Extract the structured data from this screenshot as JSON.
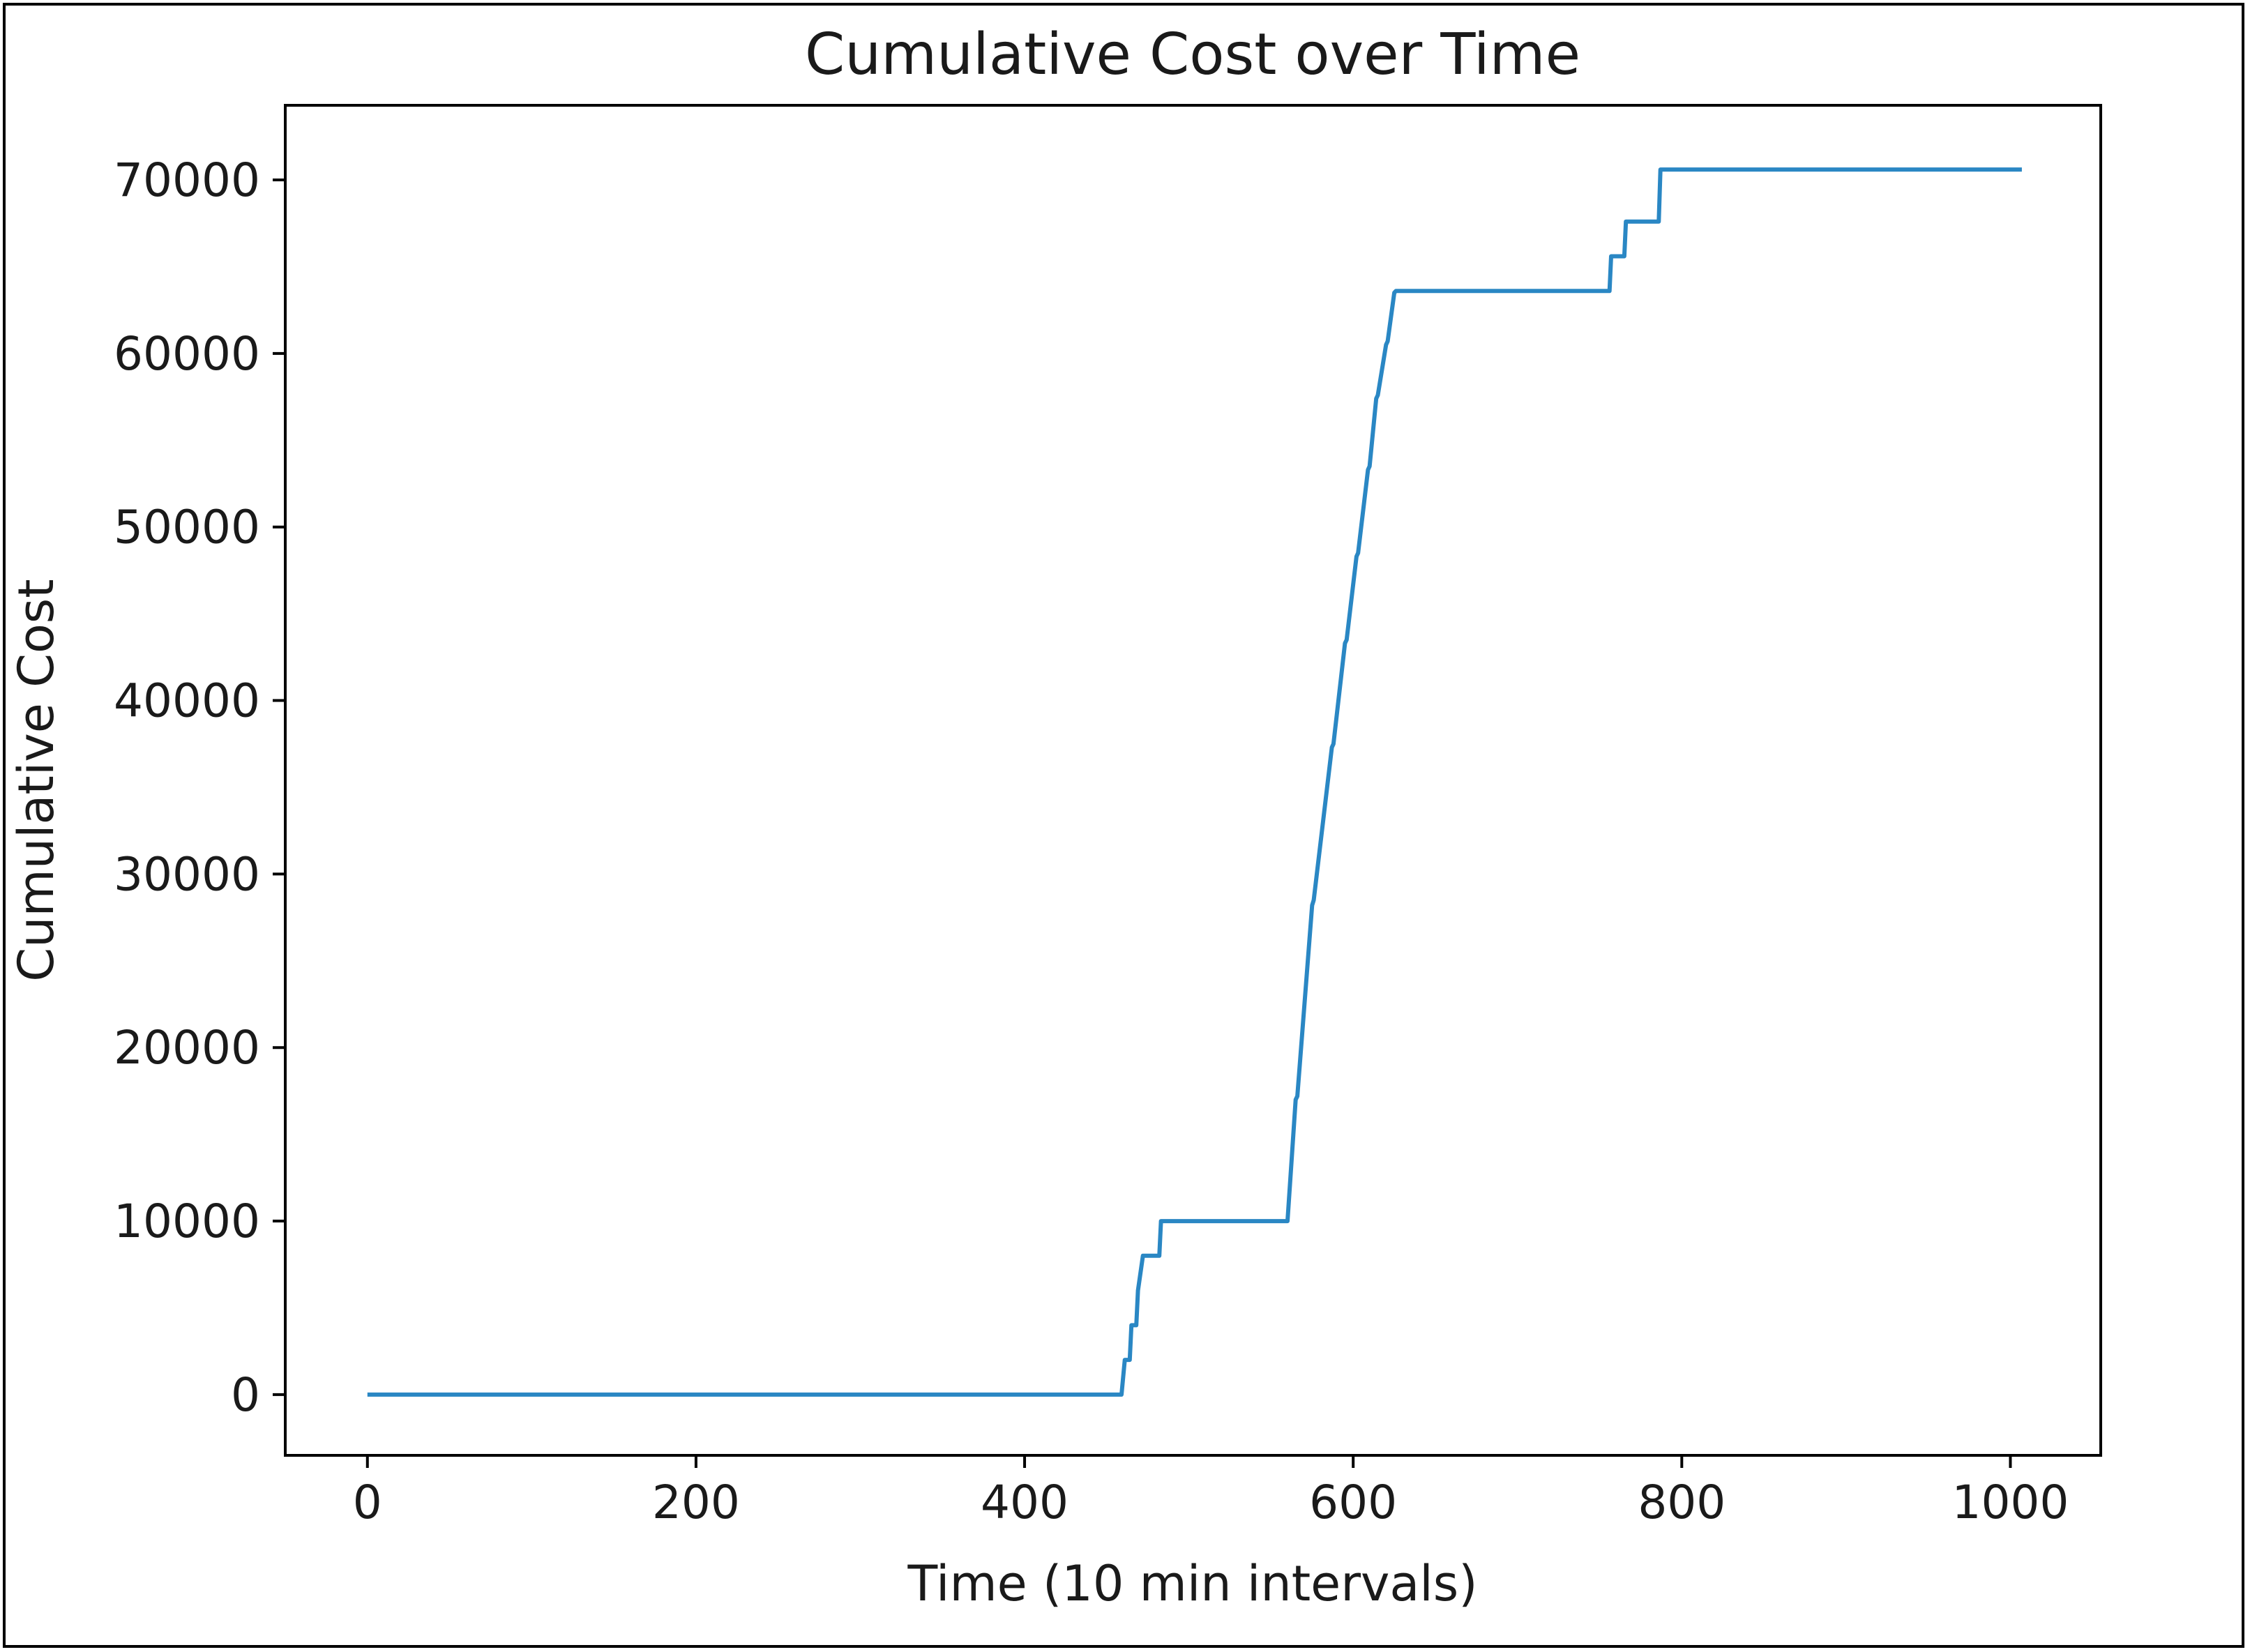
{
  "chart_data": {
    "type": "line",
    "title": "Cumulative Cost over Time",
    "xlabel": "Time (10 min intervals)",
    "ylabel": "Cumulative Cost",
    "xlim": [
      -50,
      1055
    ],
    "ylim": [
      -3500,
      74300
    ],
    "xticks": [
      0,
      200,
      400,
      600,
      800,
      1000
    ],
    "yticks": [
      0,
      10000,
      20000,
      30000,
      40000,
      50000,
      60000,
      70000
    ],
    "grid": false,
    "legend": "none",
    "colors": {
      "line": "#2a87c4",
      "axes": "#000000"
    },
    "series": [
      {
        "values_x": [
          0,
          459,
          461,
          464,
          465,
          468,
          469,
          472,
          473,
          482,
          483,
          559,
          560,
          565,
          566,
          575,
          576,
          587,
          588,
          595,
          596,
          602,
          603,
          609,
          610,
          614,
          615,
          620,
          621,
          625,
          626,
          630,
          631,
          756,
          757,
          765,
          766,
          786,
          787,
          1007
        ],
        "values_y": [
          0,
          0,
          2000,
          2000,
          4000,
          4000,
          6000,
          8000,
          8000,
          8000,
          10000,
          10000,
          10000,
          17000,
          17200,
          28200,
          28500,
          37300,
          37500,
          43300,
          43500,
          48300,
          48500,
          53300,
          53500,
          57400,
          57600,
          60500,
          60700,
          63500,
          63600,
          63600,
          63600,
          63600,
          65600,
          65600,
          67600,
          67600,
          70600,
          70600
        ]
      }
    ]
  }
}
